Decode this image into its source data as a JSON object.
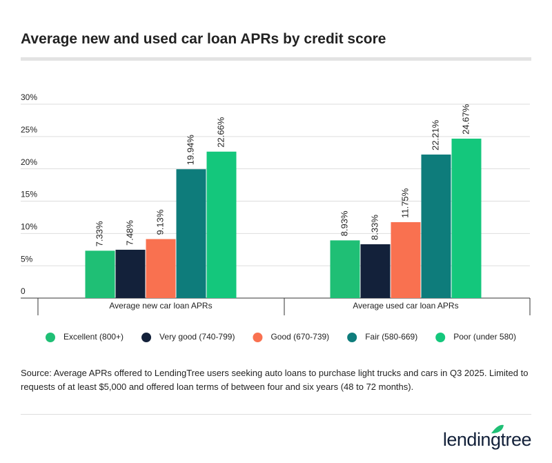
{
  "chart_data": {
    "type": "bar",
    "title": "Average new and used car loan APRs by credit score",
    "categories": [
      "Average new car loan APRs",
      "Average used car loan APRs"
    ],
    "series": [
      {
        "name": "Excellent (800+)",
        "color": "#1fbf75",
        "values": [
          7.33,
          8.93
        ],
        "value_labels": [
          "7.33%",
          "8.93%"
        ]
      },
      {
        "name": "Very good (740-799)",
        "color": "#13213a",
        "values": [
          7.48,
          8.33
        ],
        "value_labels": [
          "7.48%",
          "8.33%"
        ]
      },
      {
        "name": "Good (670-739)",
        "color": "#f97150",
        "values": [
          9.13,
          11.75
        ],
        "value_labels": [
          "9.13%",
          "11.75%"
        ]
      },
      {
        "name": "Fair (580-669)",
        "color": "#0e7c7b",
        "values": [
          19.94,
          22.21
        ],
        "value_labels": [
          "19.94%",
          "22.21%"
        ]
      },
      {
        "name": "Poor (under 580)",
        "color": "#14c77c",
        "values": [
          22.66,
          24.67
        ],
        "value_labels": [
          "22.66%",
          "24.67%"
        ]
      }
    ],
    "ylim": [
      0,
      30
    ],
    "yticks": [
      0,
      {
        "value": 5,
        "label": "5%"
      },
      {
        "value": 10,
        "label": "10%"
      },
      {
        "value": 15,
        "label": "15%"
      },
      {
        "value": 20,
        "label": "20%"
      },
      {
        "value": 25,
        "label": "25%"
      },
      {
        "value": 30,
        "label": "30%"
      }
    ],
    "grid": true,
    "legend": "bottom",
    "source": "Source: Average APRs offered to LendingTree users seeking auto loans to purchase light trucks and cars in Q3 2025. Limited to requests of at least $5,000 and offered loan terms of between four and six years (48 to 72 months).",
    "logo": "lendingtree"
  }
}
